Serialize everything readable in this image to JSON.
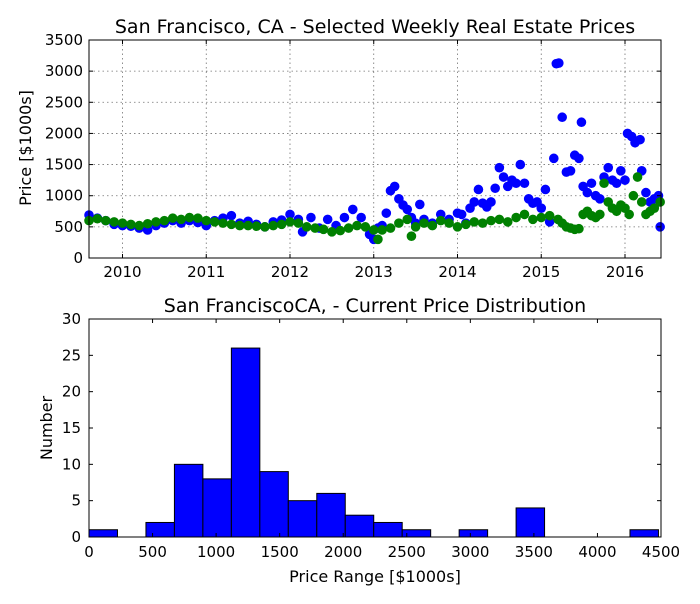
{
  "chart_data": [
    {
      "type": "scatter",
      "title": "San Francisco, CA - Selected Weekly Real Estate Prices",
      "xlabel": "",
      "ylabel": "Price [$1000s]",
      "xlim": [
        2009.6,
        2016.43
      ],
      "ylim": [
        0,
        3500
      ],
      "xticks": [
        2010,
        2011,
        2012,
        2013,
        2014,
        2015,
        2016
      ],
      "yticks": [
        0,
        500,
        1000,
        1500,
        2000,
        2500,
        3000,
        3500
      ],
      "grid": true,
      "series": [
        {
          "color": "#0000ff",
          "points": [
            [
              2009.6,
              690
            ],
            [
              2009.7,
              640
            ],
            [
              2009.8,
              600
            ],
            [
              2009.9,
              540
            ],
            [
              2010.0,
              520
            ],
            [
              2010.1,
              510
            ],
            [
              2010.2,
              480
            ],
            [
              2010.3,
              450
            ],
            [
              2010.4,
              520
            ],
            [
              2010.5,
              560
            ],
            [
              2010.6,
              600
            ],
            [
              2010.7,
              560
            ],
            [
              2010.8,
              600
            ],
            [
              2010.9,
              570
            ],
            [
              2011.0,
              520
            ],
            [
              2011.1,
              600
            ],
            [
              2011.2,
              640
            ],
            [
              2011.3,
              680
            ],
            [
              2011.4,
              560
            ],
            [
              2011.5,
              590
            ],
            [
              2011.6,
              540
            ],
            [
              2011.7,
              500
            ],
            [
              2011.8,
              580
            ],
            [
              2011.9,
              610
            ],
            [
              2012.0,
              700
            ],
            [
              2012.1,
              620
            ],
            [
              2012.15,
              420
            ],
            [
              2012.25,
              650
            ],
            [
              2012.35,
              480
            ],
            [
              2012.45,
              620
            ],
            [
              2012.55,
              520
            ],
            [
              2012.65,
              650
            ],
            [
              2012.75,
              780
            ],
            [
              2012.85,
              650
            ],
            [
              2012.95,
              380
            ],
            [
              2013.0,
              300
            ],
            [
              2013.05,
              480
            ],
            [
              2013.1,
              520
            ],
            [
              2013.15,
              720
            ],
            [
              2013.2,
              1080
            ],
            [
              2013.25,
              1150
            ],
            [
              2013.3,
              950
            ],
            [
              2013.35,
              850
            ],
            [
              2013.4,
              780
            ],
            [
              2013.45,
              650
            ],
            [
              2013.5,
              560
            ],
            [
              2013.55,
              860
            ],
            [
              2013.6,
              620
            ],
            [
              2013.7,
              560
            ],
            [
              2013.8,
              700
            ],
            [
              2013.9,
              620
            ],
            [
              2014.0,
              720
            ],
            [
              2014.05,
              700
            ],
            [
              2014.1,
              560
            ],
            [
              2014.15,
              800
            ],
            [
              2014.2,
              900
            ],
            [
              2014.25,
              1100
            ],
            [
              2014.3,
              880
            ],
            [
              2014.35,
              820
            ],
            [
              2014.4,
              900
            ],
            [
              2014.45,
              1120
            ],
            [
              2014.5,
              1450
            ],
            [
              2014.55,
              1300
            ],
            [
              2014.6,
              1150
            ],
            [
              2014.65,
              1250
            ],
            [
              2014.7,
              1200
            ],
            [
              2014.75,
              1500
            ],
            [
              2014.8,
              1200
            ],
            [
              2014.85,
              950
            ],
            [
              2014.9,
              880
            ],
            [
              2014.95,
              900
            ],
            [
              2015.0,
              800
            ],
            [
              2015.05,
              1100
            ],
            [
              2015.1,
              580
            ],
            [
              2015.15,
              1600
            ],
            [
              2015.18,
              3120
            ],
            [
              2015.21,
              3130
            ],
            [
              2015.25,
              2260
            ],
            [
              2015.3,
              1380
            ],
            [
              2015.35,
              1400
            ],
            [
              2015.4,
              1650
            ],
            [
              2015.45,
              1600
            ],
            [
              2015.48,
              2180
            ],
            [
              2015.5,
              1150
            ],
            [
              2015.55,
              1050
            ],
            [
              2015.6,
              1200
            ],
            [
              2015.65,
              1000
            ],
            [
              2015.7,
              950
            ],
            [
              2015.75,
              1300
            ],
            [
              2015.8,
              1450
            ],
            [
              2015.85,
              1250
            ],
            [
              2015.9,
              1200
            ],
            [
              2015.95,
              1400
            ],
            [
              2016.0,
              1250
            ],
            [
              2016.03,
              2000
            ],
            [
              2016.08,
              1950
            ],
            [
              2016.12,
              1850
            ],
            [
              2016.18,
              1900
            ],
            [
              2016.2,
              1400
            ],
            [
              2016.25,
              1050
            ],
            [
              2016.3,
              900
            ],
            [
              2016.35,
              950
            ],
            [
              2016.4,
              1000
            ],
            [
              2016.42,
              500
            ]
          ]
        },
        {
          "color": "#008000",
          "points": [
            [
              2009.6,
              600
            ],
            [
              2009.7,
              630
            ],
            [
              2009.8,
              600
            ],
            [
              2009.9,
              580
            ],
            [
              2010.0,
              560
            ],
            [
              2010.1,
              540
            ],
            [
              2010.2,
              520
            ],
            [
              2010.3,
              550
            ],
            [
              2010.4,
              580
            ],
            [
              2010.5,
              600
            ],
            [
              2010.6,
              640
            ],
            [
              2010.7,
              620
            ],
            [
              2010.8,
              650
            ],
            [
              2010.9,
              640
            ],
            [
              2011.0,
              600
            ],
            [
              2011.1,
              580
            ],
            [
              2011.2,
              560
            ],
            [
              2011.3,
              540
            ],
            [
              2011.4,
              520
            ],
            [
              2011.5,
              520
            ],
            [
              2011.6,
              510
            ],
            [
              2011.7,
              500
            ],
            [
              2011.8,
              520
            ],
            [
              2011.9,
              540
            ],
            [
              2012.0,
              580
            ],
            [
              2012.1,
              560
            ],
            [
              2012.2,
              500
            ],
            [
              2012.3,
              480
            ],
            [
              2012.4,
              460
            ],
            [
              2012.5,
              420
            ],
            [
              2012.6,
              440
            ],
            [
              2012.7,
              480
            ],
            [
              2012.8,
              520
            ],
            [
              2012.9,
              500
            ],
            [
              2013.0,
              450
            ],
            [
              2013.05,
              300
            ],
            [
              2013.1,
              450
            ],
            [
              2013.2,
              480
            ],
            [
              2013.3,
              560
            ],
            [
              2013.4,
              620
            ],
            [
              2013.45,
              350
            ],
            [
              2013.5,
              500
            ],
            [
              2013.6,
              560
            ],
            [
              2013.7,
              520
            ],
            [
              2013.8,
              600
            ],
            [
              2013.9,
              560
            ],
            [
              2014.0,
              500
            ],
            [
              2014.1,
              540
            ],
            [
              2014.2,
              580
            ],
            [
              2014.3,
              560
            ],
            [
              2014.4,
              600
            ],
            [
              2014.5,
              620
            ],
            [
              2014.6,
              580
            ],
            [
              2014.7,
              650
            ],
            [
              2014.8,
              700
            ],
            [
              2014.9,
              620
            ],
            [
              2015.0,
              650
            ],
            [
              2015.1,
              680
            ],
            [
              2015.2,
              620
            ],
            [
              2015.25,
              560
            ],
            [
              2015.3,
              500
            ],
            [
              2015.35,
              480
            ],
            [
              2015.4,
              460
            ],
            [
              2015.45,
              470
            ],
            [
              2015.5,
              700
            ],
            [
              2015.55,
              750
            ],
            [
              2015.6,
              680
            ],
            [
              2015.65,
              650
            ],
            [
              2015.7,
              700
            ],
            [
              2015.75,
              1200
            ],
            [
              2015.8,
              900
            ],
            [
              2015.85,
              800
            ],
            [
              2015.9,
              750
            ],
            [
              2015.95,
              850
            ],
            [
              2016.0,
              800
            ],
            [
              2016.05,
              700
            ],
            [
              2016.1,
              1000
            ],
            [
              2016.15,
              1300
            ],
            [
              2016.2,
              900
            ],
            [
              2016.25,
              700
            ],
            [
              2016.3,
              750
            ],
            [
              2016.35,
              800
            ],
            [
              2016.42,
              900
            ]
          ]
        }
      ]
    },
    {
      "type": "bar",
      "title": "San FranciscoCA,  - Current Price Distribution",
      "xlabel": "Price Range [$1000s]",
      "ylabel": "Number",
      "xlim": [
        0,
        4500
      ],
      "ylim": [
        0,
        30
      ],
      "xticks": [
        0,
        500,
        1000,
        1500,
        2000,
        2500,
        3000,
        3500,
        4000,
        4500
      ],
      "yticks": [
        0,
        5,
        10,
        15,
        20,
        25,
        30
      ],
      "bin_width": 224,
      "bar_color": "#0000ff",
      "bins": [
        {
          "start": 0,
          "count": 1
        },
        {
          "start": 224,
          "count": 0
        },
        {
          "start": 448,
          "count": 2
        },
        {
          "start": 672,
          "count": 10
        },
        {
          "start": 896,
          "count": 8
        },
        {
          "start": 1120,
          "count": 26
        },
        {
          "start": 1344,
          "count": 9
        },
        {
          "start": 1568,
          "count": 5
        },
        {
          "start": 1792,
          "count": 6
        },
        {
          "start": 2016,
          "count": 3
        },
        {
          "start": 2240,
          "count": 2
        },
        {
          "start": 2464,
          "count": 1
        },
        {
          "start": 2688,
          "count": 0
        },
        {
          "start": 2912,
          "count": 1
        },
        {
          "start": 3136,
          "count": 0
        },
        {
          "start": 3360,
          "count": 4
        },
        {
          "start": 3584,
          "count": 0
        },
        {
          "start": 3808,
          "count": 0
        },
        {
          "start": 4032,
          "count": 0
        },
        {
          "start": 4256,
          "count": 1
        }
      ]
    }
  ]
}
